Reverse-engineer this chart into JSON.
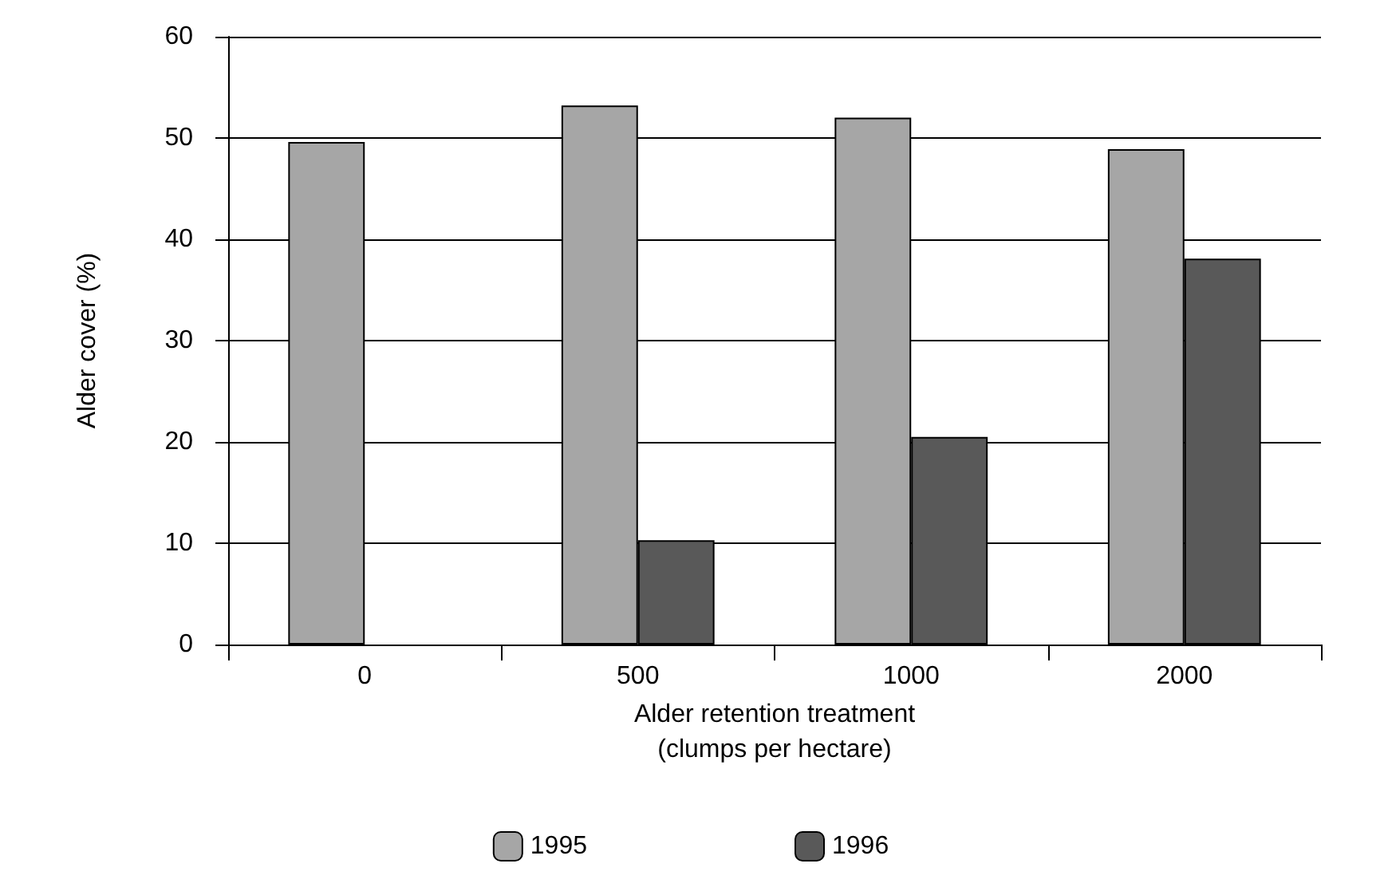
{
  "chart_data": {
    "type": "bar",
    "xlabel": "Alder retention treatment\n(clumps per hectare)",
    "ylabel": "Alder cover (%)",
    "categories": [
      "0",
      "500",
      "1000",
      "2000"
    ],
    "series": [
      {
        "name": "1995",
        "color": "#a6a6a6",
        "values": [
          49.6,
          53.2,
          52.0,
          48.9
        ]
      },
      {
        "name": "1996",
        "color": "#595959",
        "values": [
          null,
          10.3,
          20.5,
          38.1
        ]
      }
    ],
    "ylim": [
      0,
      60
    ],
    "yticks": [
      0,
      10,
      20,
      30,
      40,
      50,
      60
    ],
    "grid": "y",
    "legend": "bottom"
  }
}
